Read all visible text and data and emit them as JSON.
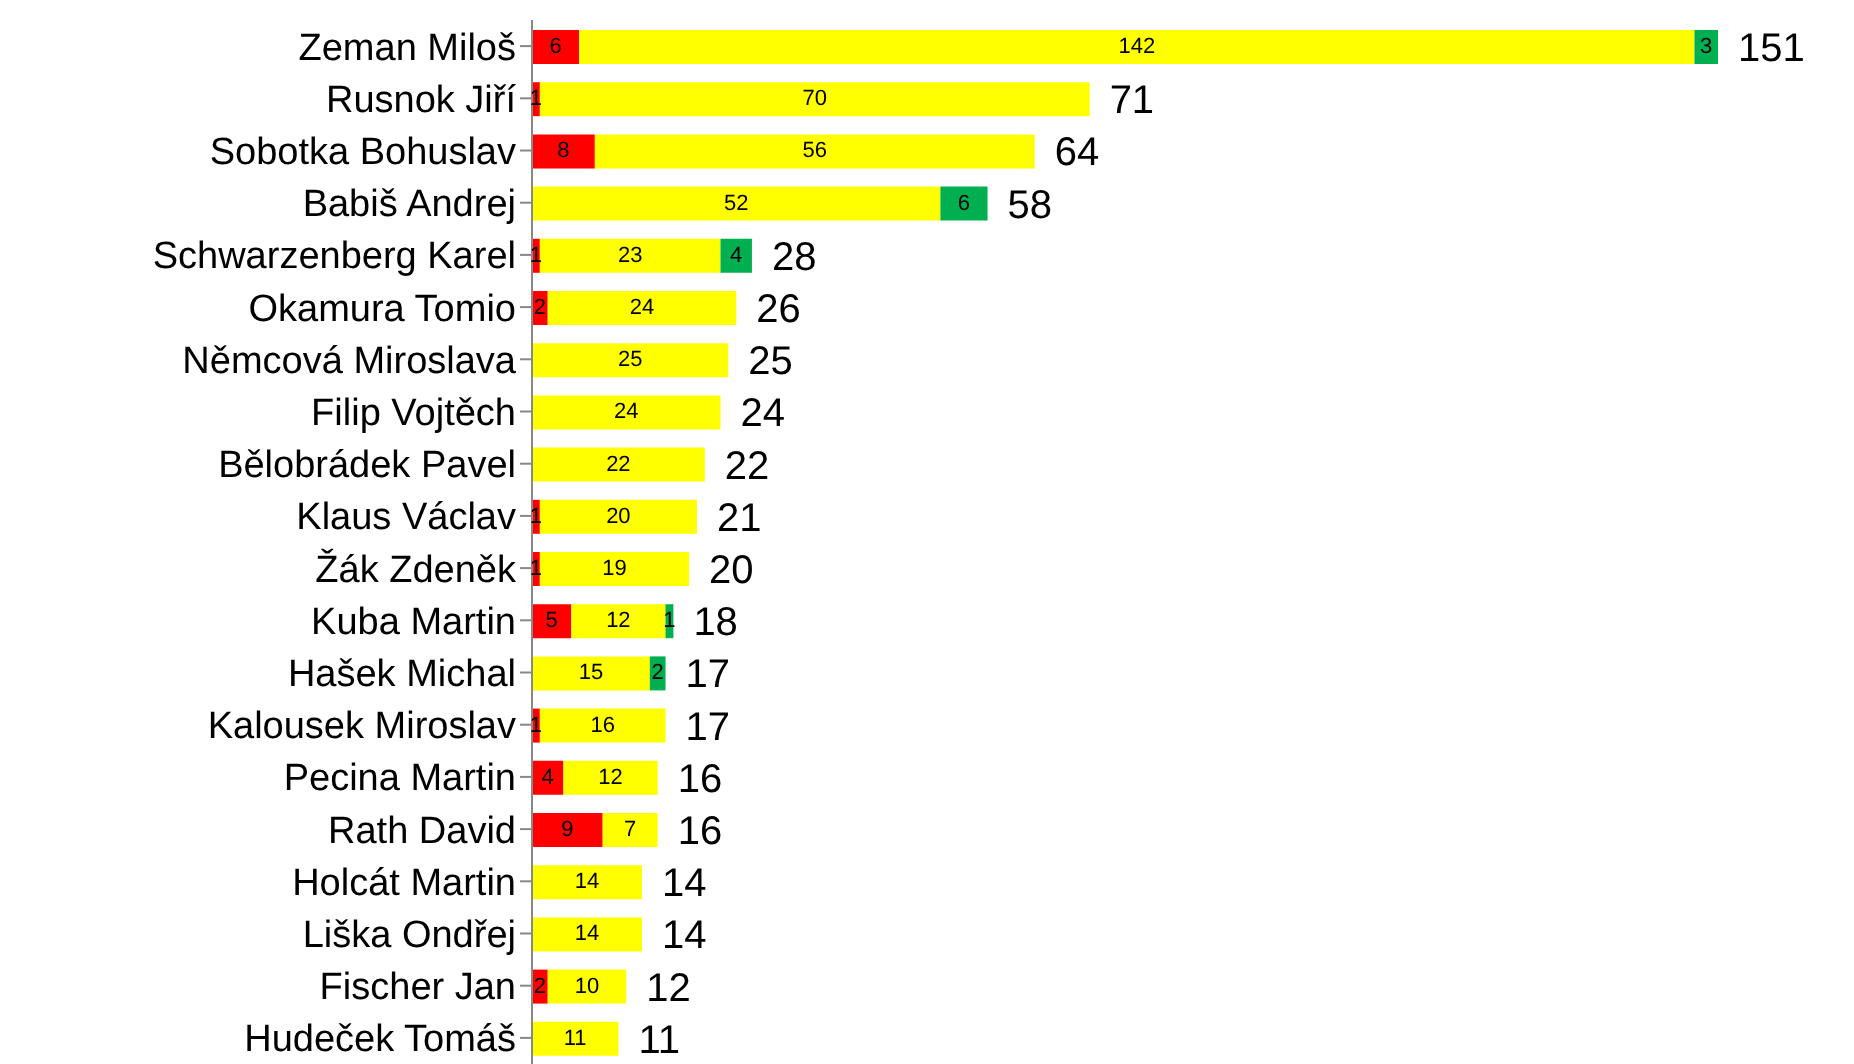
{
  "chart_data": {
    "type": "bar",
    "orientation": "horizontal",
    "stacked": true,
    "data_labels": true,
    "categories": [
      "Zeman Miloš",
      "Rusnok Jiří",
      "Sobotka Bohuslav",
      "Babiš Andrej",
      "Schwarzenberg Karel",
      "Okamura Tomio",
      "Němcová Miroslava",
      "Filip Vojtěch",
      "Bělobrádek Pavel",
      "Klaus Václav",
      "Žák Zdeněk",
      "Kuba Martin",
      "Hašek Michal",
      "Kalousek Miroslav",
      "Pecina Martin",
      "Rath David",
      "Holcát Martin",
      "Liška Ondřej",
      "Fischer Jan",
      "Hudeček Tomáš"
    ],
    "series": [
      {
        "color": "#ff0000",
        "values": [
          6,
          1,
          8,
          null,
          1,
          2,
          null,
          null,
          null,
          1,
          1,
          5,
          null,
          1,
          4,
          9,
          null,
          null,
          2,
          null
        ]
      },
      {
        "color": "#ffff00",
        "values": [
          142,
          70,
          56,
          52,
          23,
          24,
          25,
          24,
          22,
          20,
          19,
          12,
          15,
          16,
          12,
          7,
          14,
          14,
          10,
          11
        ]
      },
      {
        "color": "#00b050",
        "values": [
          3,
          null,
          null,
          6,
          4,
          null,
          null,
          null,
          null,
          null,
          null,
          1,
          2,
          null,
          null,
          null,
          null,
          null,
          null,
          null
        ]
      }
    ],
    "totals": [
      "151",
      "71",
      "64",
      "58",
      "28",
      "26",
      "25",
      "24",
      "22",
      "21",
      "20",
      "18",
      "17",
      "17",
      "16",
      "16",
      "14",
      "14",
      "12",
      "11"
    ],
    "grid": false,
    "legend": false
  }
}
